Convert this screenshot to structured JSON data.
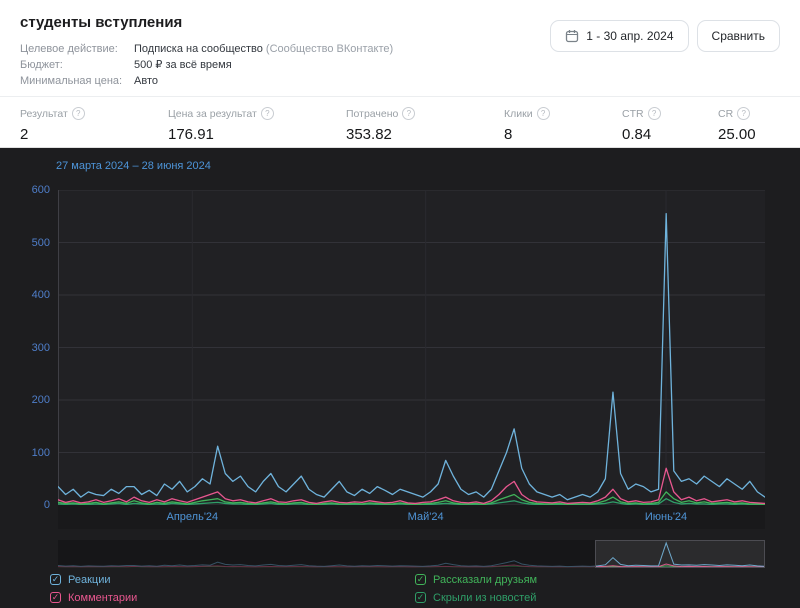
{
  "header": {
    "title": "студенты вступления",
    "fields": [
      {
        "label": "Целевое действие:",
        "value": "Подписка на сообщество",
        "suffix": " (Сообщество ВКонтакте)"
      },
      {
        "label": "Бюджет:",
        "value": "500 ₽ за всё время",
        "suffix": ""
      },
      {
        "label": "Минимальная цена:",
        "value": "Авто",
        "suffix": ""
      }
    ],
    "date_range_button": "1 - 30 апр. 2024",
    "compare_button": "Сравнить"
  },
  "stats": {
    "items": [
      {
        "label": "Результат",
        "value": "2"
      },
      {
        "label": "Цена за результат",
        "value": "176.91"
      },
      {
        "label": "Потрачено",
        "value": "353.82"
      },
      {
        "label": "Клики",
        "value": "8"
      },
      {
        "label": "CTR",
        "value": "0.84"
      },
      {
        "label": "CR",
        "value": "25.00"
      }
    ]
  },
  "chart_data": {
    "type": "line",
    "title": "27 марта 2024 – 28 июня 2024",
    "xlabel": "",
    "ylabel": "",
    "ylim": [
      0,
      600
    ],
    "y_ticks": [
      0,
      100,
      200,
      300,
      400,
      500,
      600
    ],
    "grid": true,
    "legend_position": "bottom",
    "x_labels": [
      {
        "label": "Апрель'24",
        "pos": 0.19
      },
      {
        "label": "Май'24",
        "pos": 0.52
      },
      {
        "label": "Июнь'24",
        "pos": 0.86
      }
    ],
    "navigator_selection": {
      "start": 0.76,
      "end": 1.0
    },
    "series": [
      {
        "name": "Реакции",
        "color": "#6fb3dc",
        "checked": true,
        "values": [
          35,
          20,
          30,
          15,
          25,
          20,
          18,
          30,
          22,
          35,
          35,
          20,
          28,
          18,
          40,
          30,
          45,
          25,
          35,
          50,
          40,
          112,
          60,
          45,
          55,
          35,
          25,
          45,
          60,
          35,
          25,
          40,
          55,
          30,
          20,
          15,
          30,
          45,
          25,
          18,
          30,
          22,
          35,
          28,
          20,
          30,
          25,
          20,
          15,
          25,
          40,
          85,
          55,
          30,
          20,
          25,
          15,
          30,
          65,
          100,
          145,
          70,
          40,
          25,
          20,
          15,
          20,
          10,
          15,
          20,
          15,
          25,
          50,
          215,
          60,
          30,
          40,
          35,
          25,
          30,
          555,
          65,
          45,
          50,
          40,
          55,
          45,
          35,
          50,
          40,
          30,
          45,
          25,
          15
        ]
      },
      {
        "name": "Комментарии",
        "color": "#e8578f",
        "checked": true,
        "values": [
          10,
          5,
          8,
          4,
          6,
          10,
          5,
          8,
          12,
          6,
          15,
          8,
          5,
          10,
          6,
          12,
          8,
          5,
          10,
          15,
          20,
          25,
          12,
          8,
          10,
          6,
          4,
          8,
          12,
          6,
          5,
          8,
          10,
          5,
          3,
          6,
          8,
          5,
          4,
          6,
          5,
          8,
          6,
          4,
          5,
          8,
          4,
          3,
          5,
          6,
          10,
          15,
          8,
          5,
          4,
          6,
          3,
          8,
          20,
          35,
          45,
          20,
          10,
          6,
          5,
          4,
          6,
          3,
          4,
          5,
          4,
          8,
          15,
          30,
          12,
          6,
          8,
          5,
          6,
          10,
          70,
          25,
          10,
          15,
          8,
          12,
          6,
          8,
          10,
          6,
          8,
          5,
          4,
          3
        ]
      },
      {
        "name": "Рассказали друзьям",
        "color": "#41b45a",
        "checked": true,
        "values": [
          5,
          3,
          4,
          2,
          3,
          5,
          2,
          4,
          6,
          3,
          8,
          4,
          2,
          5,
          3,
          6,
          4,
          2,
          5,
          8,
          10,
          12,
          6,
          4,
          5,
          3,
          2,
          4,
          6,
          3,
          2,
          4,
          5,
          2,
          1,
          3,
          4,
          2,
          2,
          3,
          2,
          4,
          3,
          2,
          2,
          4,
          2,
          1,
          2,
          3,
          5,
          8,
          4,
          2,
          2,
          3,
          1,
          4,
          10,
          15,
          20,
          10,
          5,
          3,
          2,
          2,
          3,
          1,
          2,
          2,
          2,
          4,
          8,
          15,
          6,
          3,
          4,
          2,
          3,
          5,
          25,
          12,
          5,
          8,
          4,
          6,
          3,
          4,
          5,
          3,
          4,
          2,
          2,
          1
        ]
      },
      {
        "name": "Скрыли из новостей",
        "color": "#2f9e68",
        "checked": true,
        "values": [
          2,
          1,
          2,
          1,
          1,
          2,
          1,
          2,
          3,
          1,
          3,
          2,
          1,
          2,
          1,
          3,
          2,
          1,
          2,
          3,
          4,
          5,
          3,
          2,
          2,
          1,
          1,
          2,
          3,
          1,
          1,
          2,
          2,
          1,
          1,
          1,
          2,
          1,
          1,
          1,
          1,
          2,
          1,
          1,
          1,
          2,
          1,
          1,
          1,
          1,
          2,
          3,
          2,
          1,
          1,
          1,
          1,
          2,
          4,
          6,
          8,
          4,
          2,
          1,
          1,
          1,
          1,
          0,
          1,
          1,
          1,
          2,
          3,
          6,
          3,
          1,
          2,
          1,
          1,
          2,
          12,
          5,
          2,
          3,
          2,
          2,
          1,
          2,
          2,
          1,
          2,
          1,
          1,
          0
        ]
      }
    ]
  }
}
